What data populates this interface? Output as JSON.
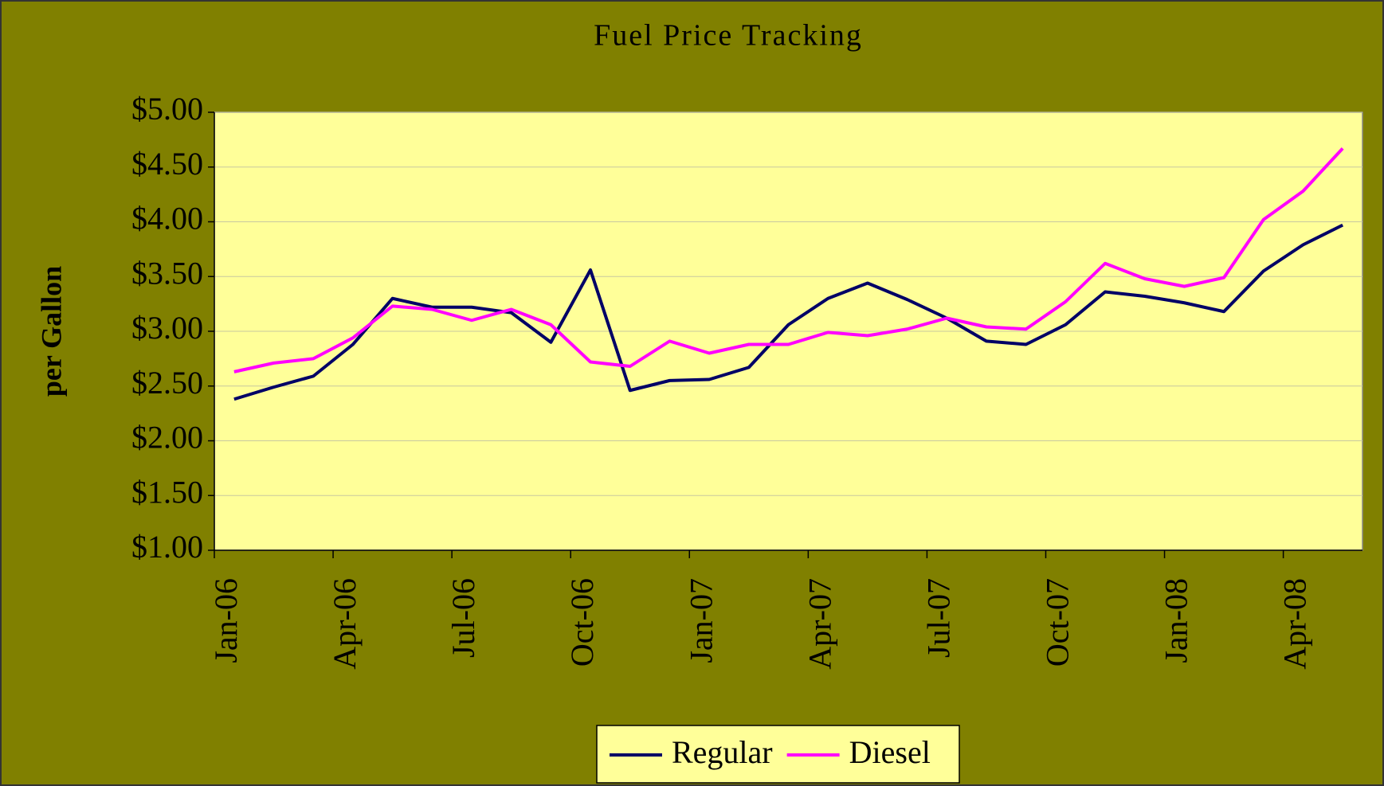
{
  "chart_data": {
    "type": "line",
    "title": "Fuel Price Tracking",
    "y_label": "per Gallon",
    "categories": [
      "Jan-06",
      null,
      null,
      "Apr-06",
      null,
      null,
      "Jul-06",
      null,
      null,
      "Oct-06",
      null,
      null,
      "Jan-07",
      null,
      null,
      "Apr-07",
      null,
      null,
      "Jul-07",
      null,
      null,
      "Oct-07",
      null,
      null,
      "Jan-08",
      null,
      null,
      "Apr-08",
      null
    ],
    "series": [
      {
        "name": "Regular",
        "color": "#000066",
        "values": [
          2.38,
          2.49,
          2.59,
          2.88,
          3.3,
          3.22,
          3.22,
          3.17,
          2.9,
          3.56,
          2.46,
          2.55,
          2.56,
          2.67,
          3.06,
          3.3,
          3.44,
          3.29,
          3.12,
          2.91,
          2.88,
          3.06,
          3.36,
          3.32,
          3.26,
          3.18,
          3.55,
          3.79,
          3.97
        ]
      },
      {
        "name": "Diesel",
        "color": "#ff00ff",
        "values": [
          2.63,
          2.71,
          2.75,
          2.94,
          3.23,
          3.2,
          3.1,
          3.2,
          3.06,
          2.72,
          2.68,
          2.91,
          2.8,
          2.88,
          2.88,
          2.99,
          2.96,
          3.02,
          3.12,
          3.04,
          3.02,
          3.27,
          3.62,
          3.48,
          3.41,
          3.49,
          4.02,
          4.28,
          4.67
        ]
      }
    ],
    "ylim": [
      1,
      5
    ],
    "yticks": [
      {
        "value": 1,
        "label": "$1.00"
      },
      {
        "value": 1.5,
        "label": "$1.50"
      },
      {
        "value": 2,
        "label": "$2.00"
      },
      {
        "value": 2.5,
        "label": "$2.50"
      },
      {
        "value": 3,
        "label": "$3.00"
      },
      {
        "value": 3.5,
        "label": "$3.50"
      },
      {
        "value": 4,
        "label": "$4.00"
      },
      {
        "value": 4.5,
        "label": "$4.50"
      },
      {
        "value": 5,
        "label": "$5.00"
      }
    ],
    "grid": true,
    "plot_color": "#ffff99",
    "background": "#808000",
    "legend": "bottom"
  }
}
